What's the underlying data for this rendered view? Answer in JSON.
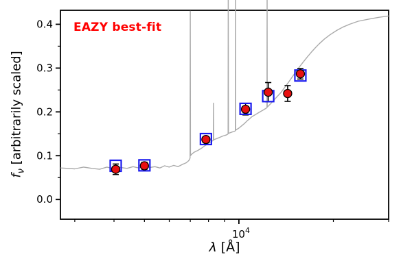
{
  "figure": {
    "annotation": "EAZY best-fit",
    "annotation_color": "#ff0000",
    "xlabel": {
      "symbol": "λ",
      "rest": " [Å]"
    },
    "ylabel": {
      "symbol": "f",
      "sub": "ν",
      "rest": " [arbitrarily scaled]"
    }
  },
  "chart_data": {
    "type": "line",
    "title": "EAZY best-fit",
    "xlabel": "λ [Å]",
    "ylabel": "f_ν [arbitrarily scaled]",
    "xscale": "log",
    "xlim": [
      2700,
      30000
    ],
    "ylim": [
      -0.045,
      0.432
    ],
    "grid": false,
    "legend": null,
    "yticks": [
      0.0,
      0.1,
      0.2,
      0.3,
      0.4
    ],
    "ytick_labels": [
      "0.0",
      "0.1",
      "0.2",
      "0.3",
      "0.4"
    ],
    "yticks_minor": [
      0.05,
      0.15,
      0.25,
      0.35
    ],
    "xticks": [
      10000
    ],
    "xtick_labels": [
      "10^4"
    ],
    "xticks_minor": [
      3000,
      4000,
      5000,
      6000,
      7000,
      8000,
      9000,
      20000,
      30000
    ],
    "series": [
      {
        "name": "model spectrum",
        "type": "line",
        "color": "#aaaaaa",
        "x": [
          2700,
          3000,
          3200,
          3400,
          3600,
          3800,
          4000,
          4200,
          4400,
          4600,
          4800,
          5000,
          5200,
          5400,
          5600,
          5800,
          6000,
          6200,
          6400,
          6600,
          6800,
          6900,
          6960,
          6990,
          7000,
          7010,
          7060,
          7200,
          7400,
          7600,
          7800,
          8000,
          8150,
          8250,
          8290,
          8300,
          8310,
          8350,
          8500,
          8700,
          8900,
          9100,
          9200,
          9240,
          9250,
          9260,
          9350,
          9500,
          9700,
          9740,
          9750,
          9760,
          9850,
          10000,
          10200,
          10400,
          10600,
          10800,
          11000,
          11300,
          11600,
          12000,
          12250,
          12290,
          12300,
          12310,
          12400,
          12600,
          12900,
          13200,
          13600,
          14000,
          14400,
          14800,
          15200,
          15600,
          16000,
          16500,
          17000,
          17500,
          18000,
          18700,
          19500,
          20500,
          21500,
          22500,
          24000,
          26000,
          28000,
          30000
        ],
        "y": [
          0.072,
          0.07,
          0.074,
          0.071,
          0.069,
          0.074,
          0.07,
          0.073,
          0.071,
          0.075,
          0.072,
          0.076,
          0.073,
          0.075,
          0.072,
          0.077,
          0.074,
          0.078,
          0.075,
          0.08,
          0.084,
          0.088,
          0.091,
          0.095,
          0.43,
          0.1,
          0.103,
          0.108,
          0.112,
          0.117,
          0.123,
          0.128,
          0.132,
          0.134,
          0.135,
          0.22,
          0.136,
          0.137,
          0.139,
          0.142,
          0.145,
          0.147,
          0.149,
          0.15,
          0.52,
          0.151,
          0.152,
          0.154,
          0.156,
          0.157,
          0.545,
          0.158,
          0.16,
          0.163,
          0.168,
          0.173,
          0.179,
          0.184,
          0.189,
          0.194,
          0.199,
          0.205,
          0.209,
          0.21,
          0.5,
          0.211,
          0.213,
          0.218,
          0.226,
          0.234,
          0.244,
          0.256,
          0.268,
          0.28,
          0.292,
          0.303,
          0.313,
          0.325,
          0.336,
          0.346,
          0.355,
          0.366,
          0.376,
          0.386,
          0.394,
          0.4,
          0.407,
          0.412,
          0.416,
          0.419
        ]
      },
      {
        "name": "model photometry",
        "type": "scatter",
        "marker": "open-square",
        "color": "#1a1aee",
        "x": [
          4050,
          5000,
          7850,
          10500,
          12400,
          15700
        ],
        "y": [
          0.077,
          0.078,
          0.138,
          0.207,
          0.236,
          0.283
        ]
      },
      {
        "name": "observed photometry",
        "type": "scatter",
        "marker": "circle",
        "color": "#e81010",
        "edge_color": "#000000",
        "x": [
          4050,
          5000,
          7850,
          10500,
          12400,
          14300,
          15700
        ],
        "y": [
          0.069,
          0.077,
          0.137,
          0.206,
          0.245,
          0.242,
          0.287
        ],
        "yerr": [
          0.012,
          0.008,
          0.007,
          0.013,
          0.022,
          0.018,
          0.012
        ]
      }
    ]
  }
}
